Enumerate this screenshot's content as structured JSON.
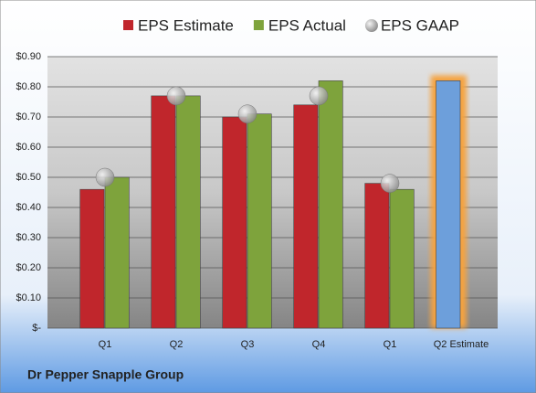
{
  "chart_data": {
    "type": "bar",
    "title": "Dr Pepper Snapple Group",
    "categories": [
      "Q1",
      "Q2",
      "Q3",
      "Q4",
      "Q1",
      "Q2 Estimate"
    ],
    "series": [
      {
        "name": "EPS Estimate",
        "color": "#c0262c",
        "values": [
          0.46,
          0.77,
          0.7,
          0.74,
          0.48,
          0.82
        ],
        "point_colors": [
          "#c0262c",
          "#c0262c",
          "#c0262c",
          "#c0262c",
          "#c0262c",
          "#6d9fdb"
        ],
        "glow": [
          false,
          false,
          false,
          false,
          false,
          true
        ],
        "glow_color": "#f5a340"
      },
      {
        "name": "EPS Actual",
        "color": "#7ea33c",
        "values": [
          0.5,
          0.77,
          0.71,
          0.82,
          0.46,
          null
        ]
      },
      {
        "name": "EPS GAAP",
        "color": "#a8a8a8",
        "marker": "circle",
        "values": [
          0.5,
          0.77,
          0.71,
          0.77,
          0.48,
          null
        ]
      }
    ],
    "ylim": [
      0,
      0.9
    ],
    "yticks": [
      {
        "value": 0,
        "label": "$-"
      },
      {
        "value": 0.1,
        "label": "$0.10"
      },
      {
        "value": 0.2,
        "label": "$0.20"
      },
      {
        "value": 0.3,
        "label": "$0.30"
      },
      {
        "value": 0.4,
        "label": "$0.40"
      },
      {
        "value": 0.5,
        "label": "$0.50"
      },
      {
        "value": 0.6,
        "label": "$0.60"
      },
      {
        "value": 0.7,
        "label": "$0.70"
      },
      {
        "value": 0.8,
        "label": "$0.80"
      },
      {
        "value": 0.9,
        "label": "$0.90"
      }
    ],
    "grid": true,
    "legend": "top"
  }
}
